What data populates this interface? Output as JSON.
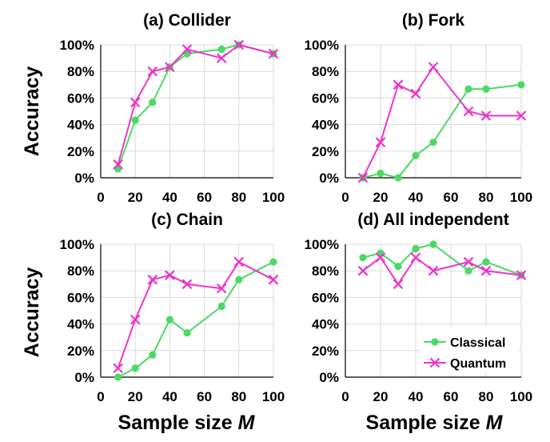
{
  "colors": {
    "classical": "#4cd964",
    "quantum": "#ee33cc",
    "grid": "#d9d9d9",
    "axis": "#000000"
  },
  "legend": {
    "placement": "bottom-right",
    "panel": "d",
    "items": [
      "Classical",
      "Quantum"
    ]
  },
  "shared_labels": {
    "ylabel_top": "Accuracy",
    "ylabel_bottom": "Accuracy",
    "xlabel_left": "Sample size",
    "xlabel_right": "Sample size",
    "xlabel_var": "M"
  },
  "chart_data": [
    {
      "panel": "a",
      "type": "line",
      "title": "(a) Collider",
      "x": [
        10,
        20,
        30,
        40,
        50,
        70,
        80,
        100
      ],
      "xlim": [
        0,
        100
      ],
      "xticks": [
        0,
        20,
        40,
        60,
        80,
        100
      ],
      "ylim": [
        0,
        100
      ],
      "yticks": [
        0,
        20,
        40,
        60,
        80,
        100
      ],
      "ytick_suffix": "%",
      "grid": true,
      "series": [
        {
          "name": "Classical",
          "marker": "circle",
          "values": [
            6.7,
            43.3,
            56.7,
            83.3,
            93.3,
            96.7,
            100,
            93.3
          ]
        },
        {
          "name": "Quantum",
          "marker": "x",
          "values": [
            10,
            56.7,
            80,
            83.3,
            96.7,
            90,
            100,
            93.3
          ]
        }
      ]
    },
    {
      "panel": "b",
      "type": "line",
      "title": "(b) Fork",
      "x": [
        10,
        20,
        30,
        40,
        50,
        70,
        80,
        100
      ],
      "xlim": [
        0,
        100
      ],
      "xticks": [
        0,
        20,
        40,
        60,
        80,
        100
      ],
      "ylim": [
        0,
        100
      ],
      "yticks": [
        0,
        20,
        40,
        60,
        80,
        100
      ],
      "ytick_suffix": "%",
      "grid": true,
      "series": [
        {
          "name": "Classical",
          "marker": "circle",
          "values": [
            0,
            3.3,
            0,
            16.7,
            26.7,
            66.7,
            66.7,
            70
          ]
        },
        {
          "name": "Quantum",
          "marker": "x",
          "values": [
            0,
            26.7,
            70,
            63.3,
            83.3,
            50,
            46.7,
            46.7
          ]
        }
      ]
    },
    {
      "panel": "c",
      "type": "line",
      "title": "(c) Chain",
      "x": [
        10,
        20,
        30,
        40,
        50,
        70,
        80,
        100
      ],
      "xlim": [
        0,
        100
      ],
      "xticks": [
        0,
        20,
        40,
        60,
        80,
        100
      ],
      "ylim": [
        0,
        100
      ],
      "yticks": [
        0,
        20,
        40,
        60,
        80,
        100
      ],
      "ytick_suffix": "%",
      "grid": true,
      "series": [
        {
          "name": "Classical",
          "marker": "circle",
          "values": [
            0,
            6.7,
            16.7,
            43.3,
            33.3,
            53.3,
            73.3,
            86.7
          ]
        },
        {
          "name": "Quantum",
          "marker": "x",
          "values": [
            6.7,
            43.3,
            73.3,
            76.7,
            70,
            66.7,
            86.7,
            73.3
          ]
        }
      ]
    },
    {
      "panel": "d",
      "type": "line",
      "title": "(d) All independent",
      "x": [
        10,
        20,
        30,
        40,
        50,
        70,
        80,
        100
      ],
      "xlim": [
        0,
        100
      ],
      "xticks": [
        0,
        20,
        40,
        60,
        80,
        100
      ],
      "ylim": [
        0,
        100
      ],
      "yticks": [
        0,
        20,
        40,
        60,
        80,
        100
      ],
      "ytick_suffix": "%",
      "grid": true,
      "series": [
        {
          "name": "Classical",
          "marker": "circle",
          "values": [
            90,
            93.3,
            83.3,
            96.7,
            100,
            80,
            86.7,
            76.7
          ]
        },
        {
          "name": "Quantum",
          "marker": "x",
          "values": [
            80,
            90,
            70,
            90,
            80,
            86.7,
            80,
            76.7
          ]
        }
      ]
    }
  ]
}
